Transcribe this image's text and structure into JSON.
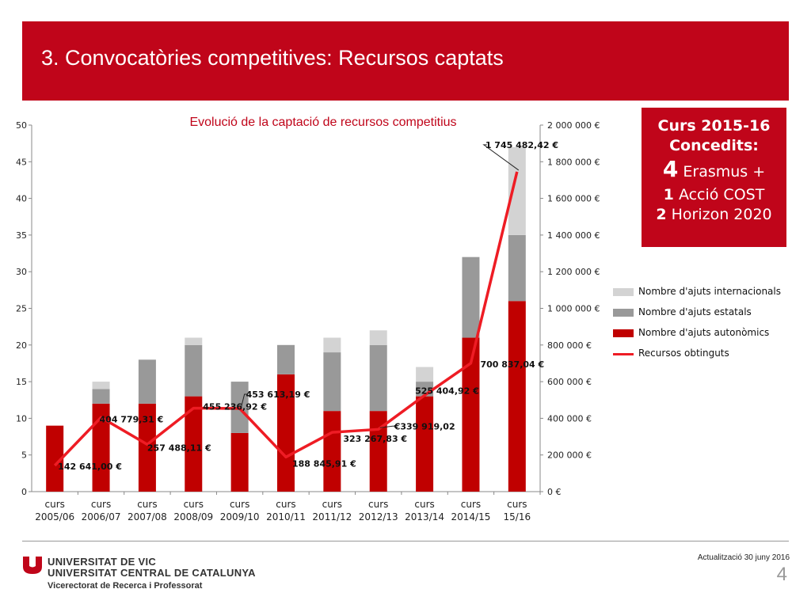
{
  "header": {
    "title": "3. Convocatòries competitives: Recursos captats"
  },
  "info_box": {
    "line1": "Curs 2015-16",
    "line2": "Concedits:",
    "line3_num": "4",
    "line3_text": "Erasmus +",
    "line4_num": "1",
    "line4_text": "Acció COST",
    "line5_num": "2",
    "line5_text": "Horizon 2020"
  },
  "chart_data": {
    "type": "bar",
    "title": "Evolució de la captació de recursos competitius",
    "categories": [
      [
        "curs",
        "2005/06"
      ],
      [
        "curs",
        "2006/07"
      ],
      [
        "curs",
        "2007/08"
      ],
      [
        "curs",
        "2008/09"
      ],
      [
        "curs",
        "2009/10"
      ],
      [
        "curs",
        "2010/11"
      ],
      [
        "curs",
        "2011/12"
      ],
      [
        "curs",
        "2012/13"
      ],
      [
        "curs",
        "2013/14"
      ],
      [
        "curs",
        "2014/15"
      ],
      [
        "curs",
        "15/16"
      ]
    ],
    "stacked": true,
    "ylim": [
      0,
      50
    ],
    "y_ticks": [
      "0",
      "5",
      "10",
      "15",
      "20",
      "25",
      "30",
      "35",
      "40",
      "45",
      "50"
    ],
    "y2lim": [
      0,
      2000000
    ],
    "y2_ticks": [
      "0 €",
      "200 000 €",
      "400 000 €",
      "600 000 €",
      "800 000 €",
      "1 000 000 €",
      "1 200 000 €",
      "1 400 000 €",
      "1 600 000 €",
      "1 800 000 €",
      "2 000 000 €"
    ],
    "series": [
      {
        "name": " Nombre d'ajuts autonòmics",
        "color": "#c00000",
        "values": [
          9,
          12,
          12,
          13,
          8,
          16,
          11,
          11,
          13,
          21,
          26
        ]
      },
      {
        "name": "Nombre d'ajuts estatals",
        "color": "#999999",
        "values": [
          0,
          2,
          6,
          7,
          7,
          4,
          8,
          9,
          2,
          11,
          9
        ]
      },
      {
        "name": "Nombre d'ajuts internacionals",
        "color": "#d3d3d3",
        "values": [
          0,
          1,
          0,
          1,
          0,
          0,
          2,
          2,
          2,
          0,
          12
        ]
      }
    ],
    "line_series": {
      "name": "Recursos obtinguts",
      "color": "#ee1c24",
      "axis": "right",
      "values": [
        142641.0,
        404779.31,
        257488.11,
        455236.92,
        453613.19,
        188845.91,
        323267.83,
        339919.02,
        525404.92,
        700837.04,
        1745482.42
      ],
      "labels": [
        "142 641,00 €",
        "404 779,31 €",
        "257 488,11 €",
        "455 236,92 €",
        "453 613,19 €",
        "188 845,91 €",
        "323 267,83 €",
        "€339 919,02",
        "525 404,92 €",
        "700 837,04 €",
        "1 745 482,42 €"
      ]
    },
    "legend_position": "right",
    "grid": false
  },
  "footer": {
    "university_line1": "UNIVERSITAT DE VIC",
    "university_line2": "UNIVERSITAT CENTRAL DE CATALUNYA",
    "vicerectorat": "Vicerectorat de Recerca i Professorat",
    "update": "Actualització 30 juny 2016",
    "page_number": "4"
  }
}
